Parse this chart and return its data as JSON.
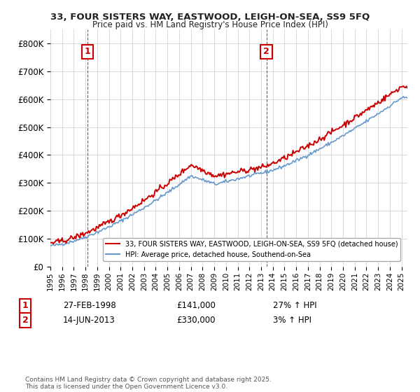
{
  "title1": "33, FOUR SISTERS WAY, EASTWOOD, LEIGH-ON-SEA, SS9 5FQ",
  "title2": "Price paid vs. HM Land Registry's House Price Index (HPI)",
  "legend_line1": "33, FOUR SISTERS WAY, EASTWOOD, LEIGH-ON-SEA, SS9 5FQ (detached house)",
  "legend_line2": "HPI: Average price, detached house, Southend-on-Sea",
  "annotation1": {
    "num": "1",
    "date": "27-FEB-1998",
    "price": "£141,000",
    "hpi": "27% ↑ HPI"
  },
  "annotation2": {
    "num": "2",
    "date": "14-JUN-2013",
    "price": "£330,000",
    "hpi": "3% ↑ HPI"
  },
  "price_color": "#cc0000",
  "hpi_color": "#6699cc",
  "background_color": "#ffffff",
  "grid_color": "#cccccc",
  "footnote": "Contains HM Land Registry data © Crown copyright and database right 2025.\nThis data is licensed under the Open Government Licence v3.0.",
  "ylim": [
    0,
    850000
  ],
  "year_start": 1995,
  "year_end": 2025,
  "sale1_year": 1998.15,
  "sale2_year": 2013.45
}
